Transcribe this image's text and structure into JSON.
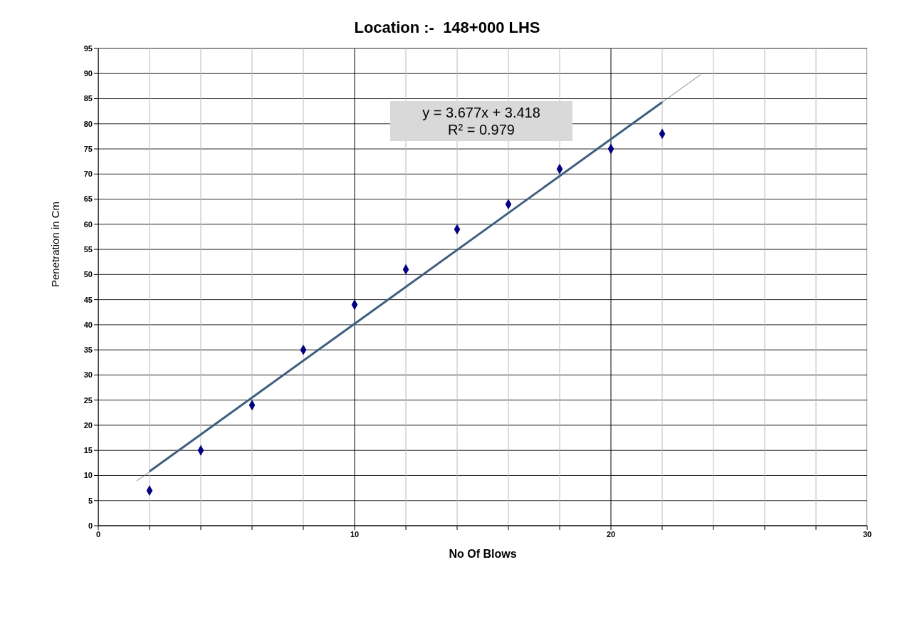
{
  "chart_data": {
    "type": "scatter",
    "title": "Location :-  148+000 LHS",
    "xlabel": "No Of Blows",
    "ylabel": "Penetration in Cm",
    "xlim": [
      0,
      30
    ],
    "xticks": [
      0,
      {
        "value": 2,
        "label": null
      },
      {
        "value": 4,
        "label": null
      },
      {
        "value": 6,
        "label": null
      },
      {
        "value": 8,
        "label": null
      },
      10,
      {
        "value": 12,
        "label": null
      },
      {
        "value": 14,
        "label": null
      },
      {
        "value": 16,
        "label": null
      },
      {
        "value": 18,
        "label": null
      },
      20,
      {
        "value": 22,
        "label": null
      },
      {
        "value": 24,
        "label": null
      },
      {
        "value": 26,
        "label": null
      },
      {
        "value": 28,
        "label": null
      },
      30
    ],
    "ylim": [
      0,
      95
    ],
    "yticks": [
      0,
      5,
      10,
      15,
      20,
      25,
      30,
      35,
      40,
      45,
      50,
      55,
      60,
      65,
      70,
      75,
      80,
      85,
      90,
      95
    ],
    "grid": true,
    "legend": false,
    "marker": "diamond",
    "series": [
      {
        "color": "#000080",
        "x": [
          2,
          4,
          6,
          8,
          10,
          12,
          14,
          16,
          18,
          20,
          22
        ],
        "values": [
          7,
          15,
          24,
          35,
          44,
          51,
          59,
          64,
          71,
          75,
          78
        ]
      },
      {
        "type": "line",
        "color": "#7f7f7f",
        "marker": "none",
        "x": [
          1.5,
          23.5
        ],
        "values": [
          8.9,
          89.8
        ]
      },
      {
        "type": "line",
        "color": "#3f5f7f",
        "marker": "none",
        "x": [
          2,
          22
        ],
        "values": [
          10.8,
          84.3
        ]
      }
    ],
    "annotations": [
      "y = 3.677x + 3.418",
      "R² = 0.979"
    ]
  }
}
